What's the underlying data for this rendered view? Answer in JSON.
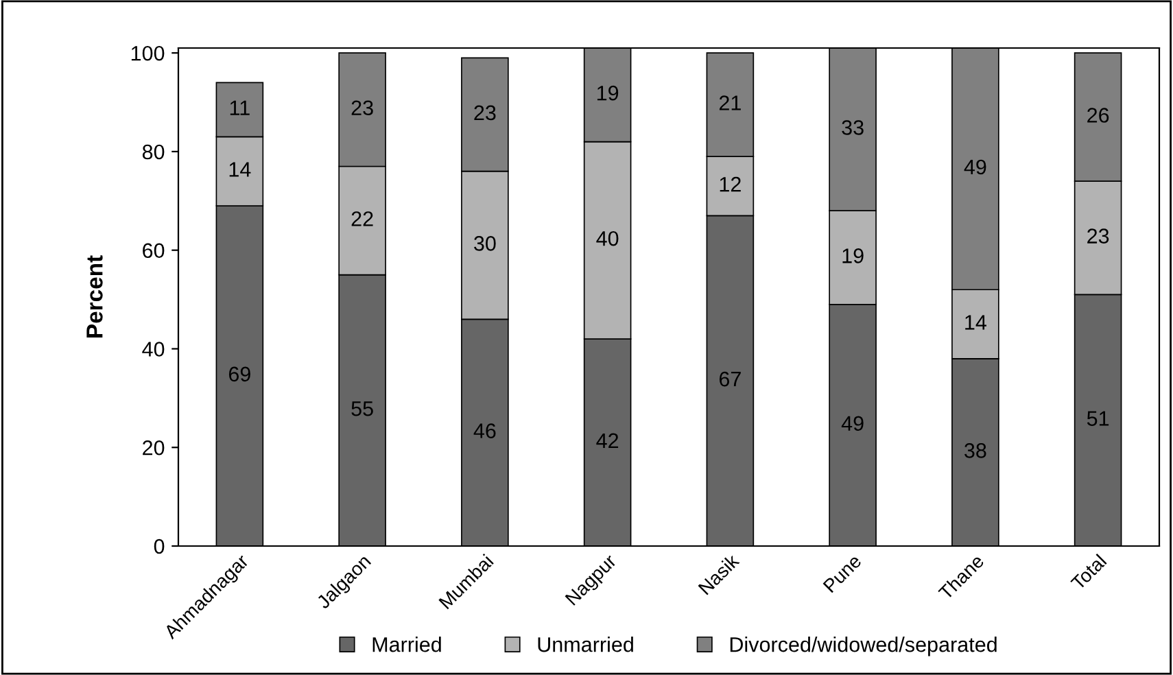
{
  "chart_data": {
    "type": "bar",
    "stacked": true,
    "ylabel": "Percent",
    "categories": [
      "Ahmadnagar",
      "Jalgaon",
      "Mumbai",
      "Nagpur",
      "Nasik",
      "Pune",
      "Thane",
      "Total"
    ],
    "series": [
      {
        "name": "Married",
        "color": "#666666",
        "values": [
          69,
          55,
          46,
          42,
          67,
          49,
          38,
          51
        ]
      },
      {
        "name": "Unmarried",
        "color": "#b3b3b3",
        "values": [
          14,
          22,
          30,
          40,
          12,
          19,
          14,
          23
        ]
      },
      {
        "name": "Divorced/widowed/separated",
        "color": "#808080",
        "values": [
          11,
          23,
          23,
          19,
          21,
          33,
          49,
          26
        ]
      }
    ],
    "ylim": [
      0,
      101
    ],
    "yticks": [
      0,
      20,
      40,
      60,
      80,
      100
    ],
    "grid": false,
    "legend": "bottom",
    "data_labels": true
  }
}
